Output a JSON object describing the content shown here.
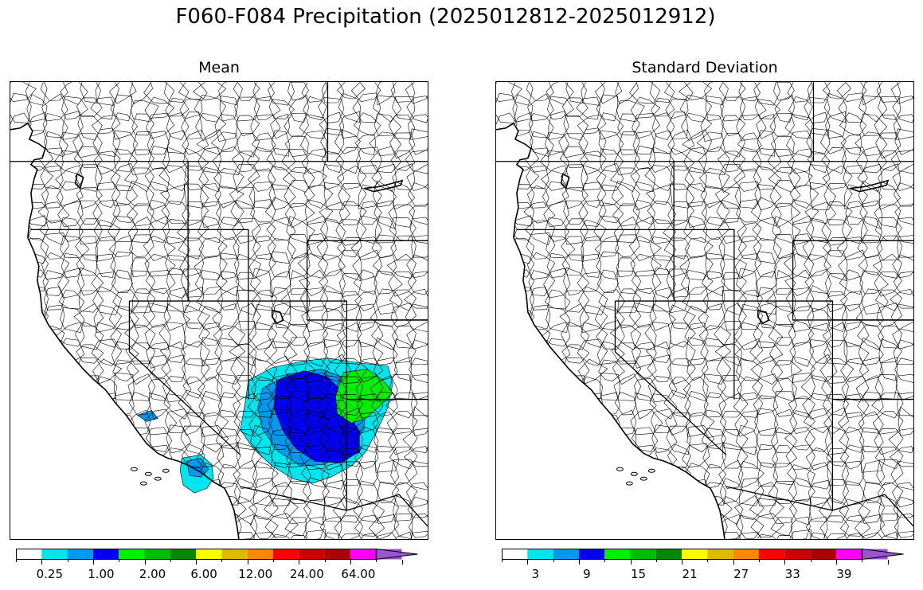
{
  "title": "F060-F084 Precipitation (2025012812-2025012912)",
  "panels": [
    {
      "title": "Mean",
      "colorbar": {
        "colors": [
          "#ffffff",
          "#00e5ee",
          "#0099ee",
          "#0000ee",
          "#00ee00",
          "#00bb00",
          "#008800",
          "#ffff00",
          "#ddbb00",
          "#ff8800",
          "#ff0000",
          "#cc0000",
          "#aa0000",
          "#ff00ff",
          "#9955cc"
        ],
        "tick_labels": [
          "0.25",
          "1.00",
          "2.00",
          "6.00",
          "12.00",
          "24.00",
          "64.00"
        ]
      }
    },
    {
      "title": "Standard Deviation",
      "colorbar": {
        "colors": [
          "#ffffff",
          "#00e5ee",
          "#0099ee",
          "#0000ee",
          "#00ee00",
          "#00bb00",
          "#008800",
          "#ffff00",
          "#ddbb00",
          "#ff8800",
          "#ff0000",
          "#cc0000",
          "#aa0000",
          "#ff00ff",
          "#9955cc"
        ],
        "tick_labels": [
          "3",
          "9",
          "15",
          "21",
          "27",
          "33",
          "39"
        ]
      }
    }
  ],
  "map": {
    "legend_colors": {
      "light": "#00e5ee",
      "medium": "#0099ee",
      "heavy": "#0000ee",
      "very_heavy": "#00ee00"
    }
  }
}
